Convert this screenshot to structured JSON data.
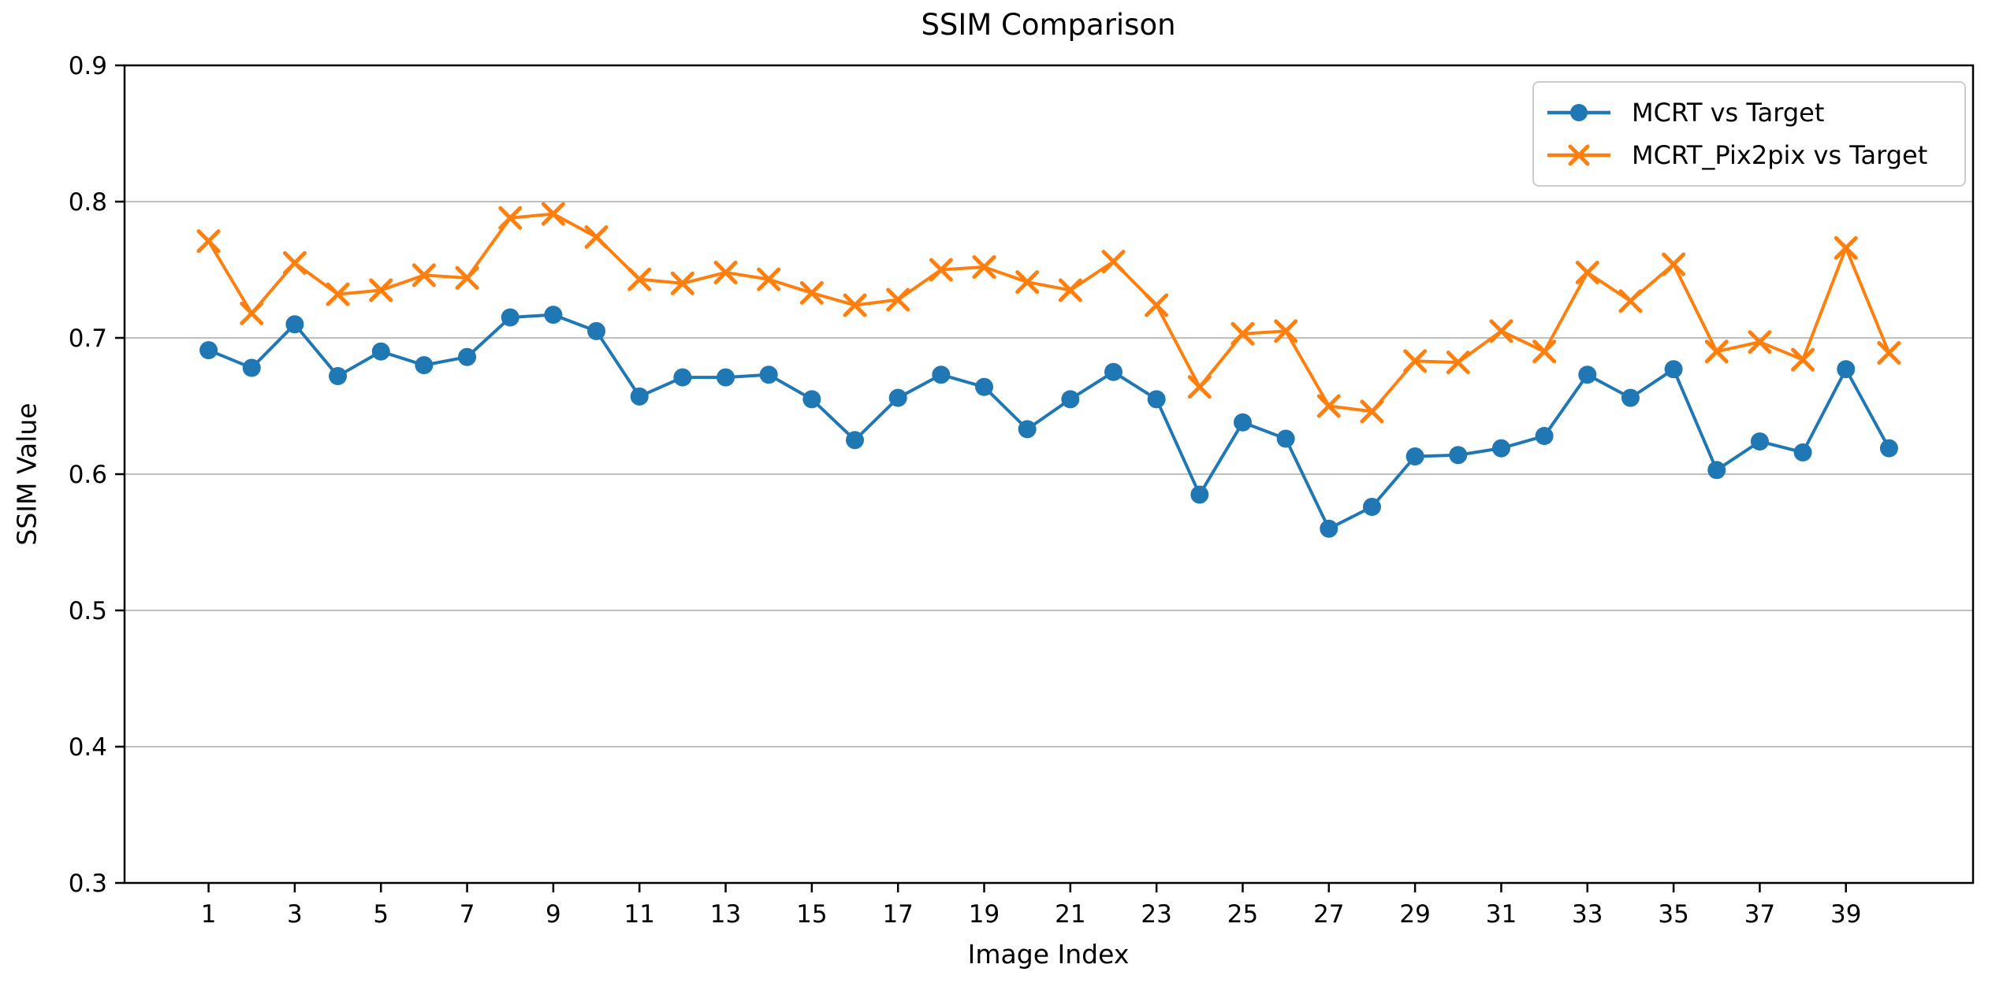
{
  "chart_data": {
    "type": "line",
    "title": "SSIM Comparison",
    "xlabel": "Image Index",
    "ylabel": "SSIM Value",
    "xlim": [
      -0.95,
      41.95
    ],
    "ylim": [
      0.3,
      0.9
    ],
    "xticks": [
      1,
      3,
      5,
      7,
      9,
      11,
      13,
      15,
      17,
      19,
      21,
      23,
      25,
      27,
      29,
      31,
      33,
      35,
      37,
      39
    ],
    "ytick_labels": [
      "0.3",
      "0.4",
      "0.5",
      "0.6",
      "0.7",
      "0.8",
      "0.9"
    ],
    "yticks": [
      0.3,
      0.4,
      0.5,
      0.6,
      0.7,
      0.8,
      0.9
    ],
    "grid": "horizontal",
    "legend_position": "upper right",
    "x": [
      1,
      2,
      3,
      4,
      5,
      6,
      7,
      8,
      9,
      10,
      11,
      12,
      13,
      14,
      15,
      16,
      17,
      18,
      19,
      20,
      21,
      22,
      23,
      24,
      25,
      26,
      27,
      28,
      29,
      30,
      31,
      32,
      33,
      34,
      35,
      36,
      37,
      38,
      39,
      40
    ],
    "series": [
      {
        "name": "MCRT vs Target",
        "color": "#1f77b4",
        "marker": "circle",
        "values": [
          0.691,
          0.678,
          0.71,
          0.672,
          0.69,
          0.68,
          0.686,
          0.715,
          0.717,
          0.705,
          0.657,
          0.671,
          0.671,
          0.673,
          0.655,
          0.625,
          0.656,
          0.673,
          0.664,
          0.633,
          0.655,
          0.675,
          0.655,
          0.585,
          0.638,
          0.626,
          0.56,
          0.576,
          0.613,
          0.614,
          0.619,
          0.628,
          0.673,
          0.656,
          0.677,
          0.603,
          0.624,
          0.616,
          0.677,
          0.619
        ]
      },
      {
        "name": "MCRT_Pix2pix vs Target",
        "color": "#ff7f0e",
        "marker": "x",
        "values": [
          0.771,
          0.718,
          0.755,
          0.732,
          0.735,
          0.746,
          0.744,
          0.788,
          0.791,
          0.774,
          0.743,
          0.74,
          0.748,
          0.743,
          0.733,
          0.724,
          0.728,
          0.75,
          0.752,
          0.741,
          0.735,
          0.756,
          0.724,
          0.664,
          0.703,
          0.705,
          0.65,
          0.646,
          0.683,
          0.682,
          0.705,
          0.69,
          0.748,
          0.727,
          0.754,
          0.69,
          0.697,
          0.684,
          0.766,
          0.689
        ]
      }
    ]
  },
  "colors": {
    "background": "#ffffff",
    "spine": "#000000",
    "grid": "#bfbfbf",
    "tick_text": "#000000",
    "legend_border": "#cccccc",
    "series_blue": "#1f77b4",
    "series_orange": "#ff7f0e"
  }
}
